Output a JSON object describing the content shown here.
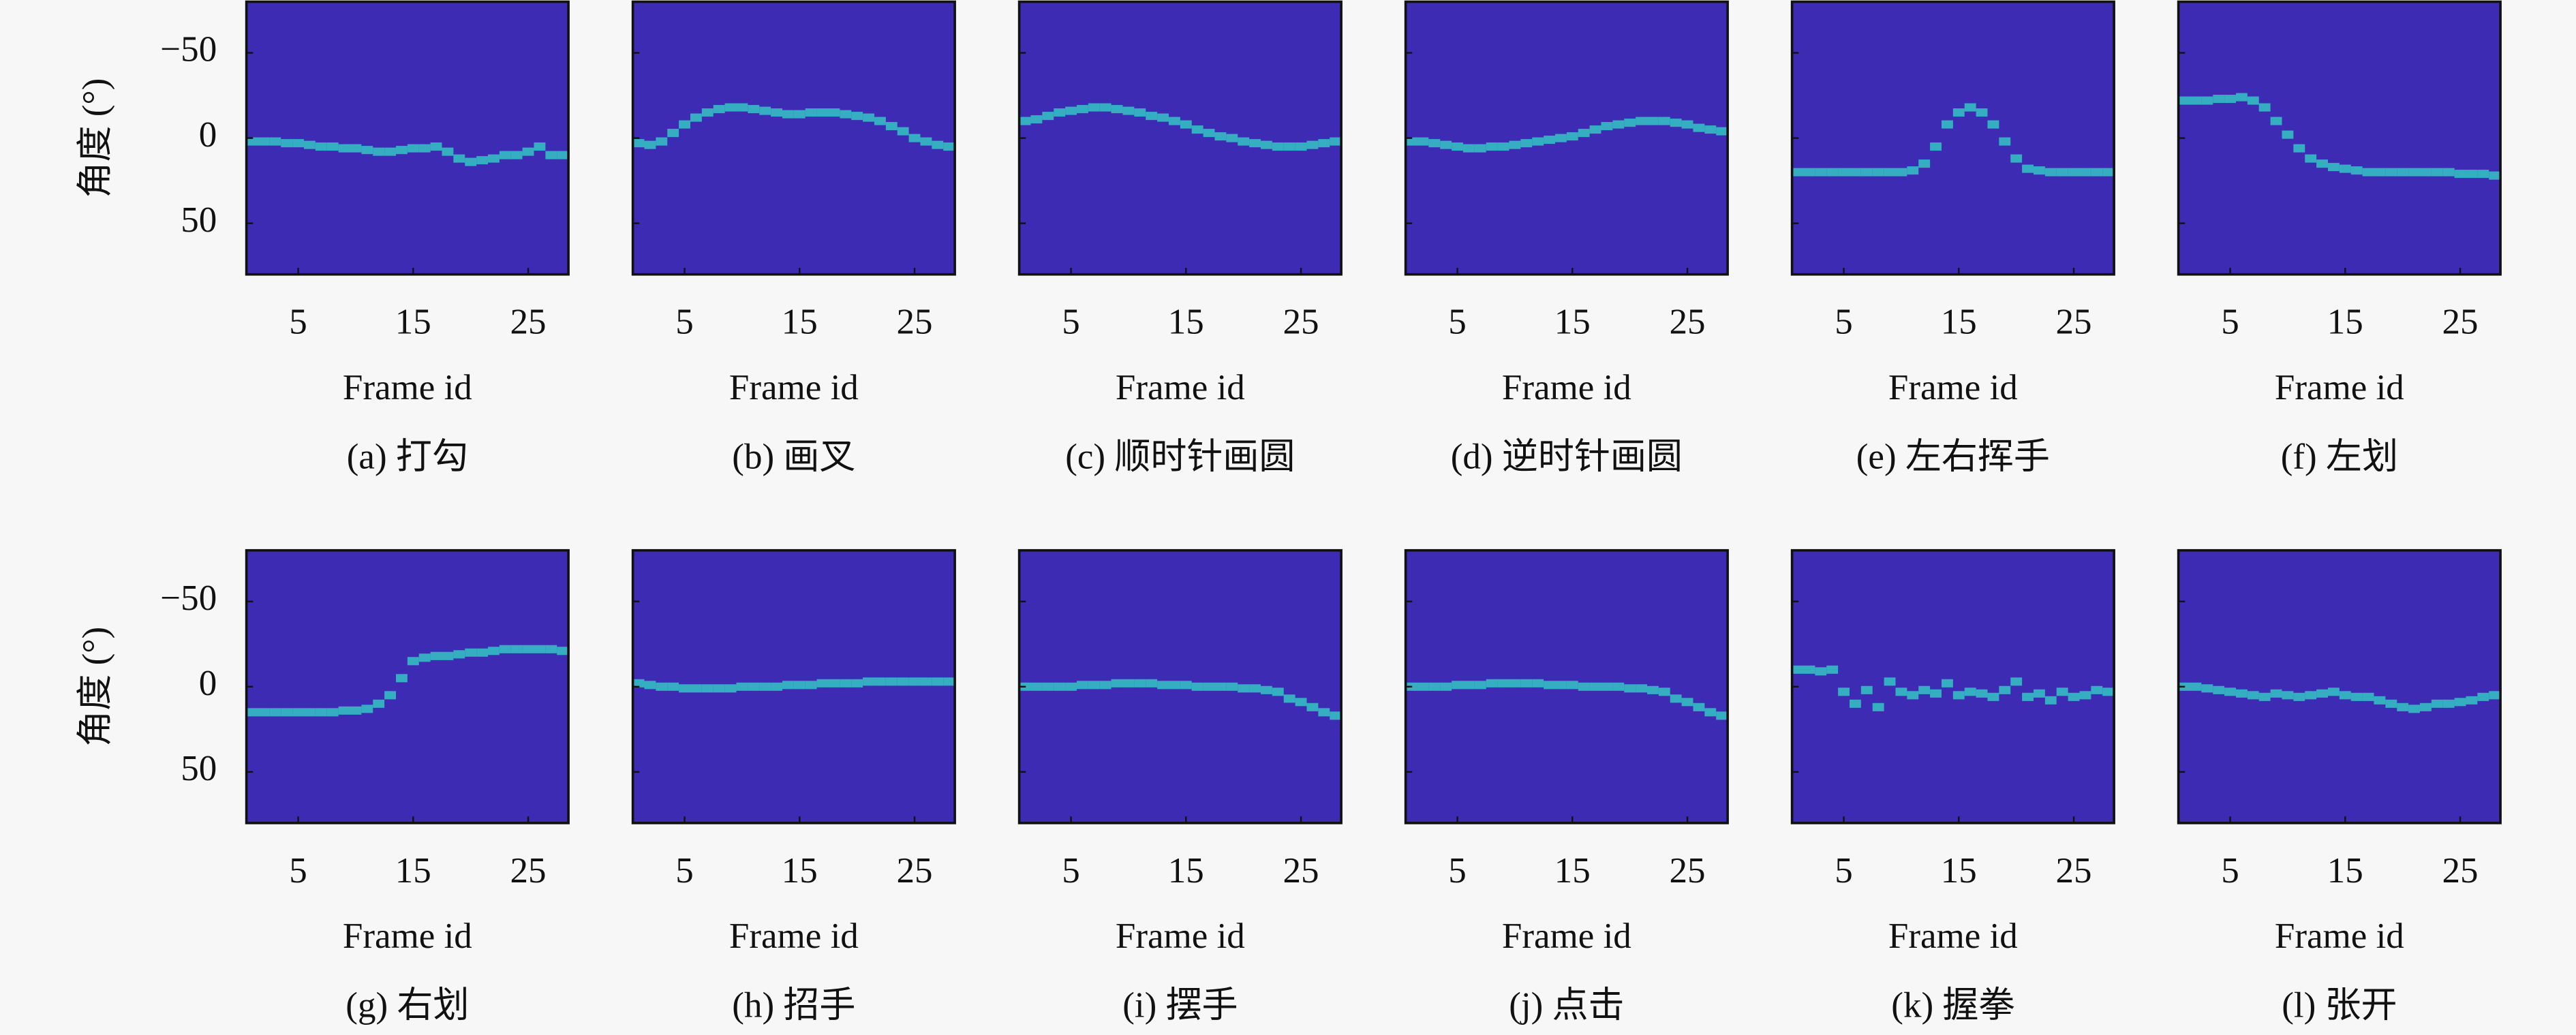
{
  "chart_data": [
    {
      "type": "heatmap",
      "caption": "(a) 打勾",
      "xlabel": "Frame id",
      "ylabel": "角度 (°)",
      "color": "#35c6c4",
      "background": "#3e2bb4",
      "x": [
        1,
        2,
        3,
        4,
        5,
        6,
        7,
        8,
        9,
        10,
        11,
        12,
        13,
        14,
        15,
        16,
        17,
        18,
        19,
        20,
        21,
        22,
        23,
        24,
        25,
        26,
        27,
        28
      ],
      "values": [
        2,
        2,
        2,
        3,
        3,
        4,
        5,
        5,
        6,
        6,
        7,
        8,
        8,
        7,
        6,
        6,
        5,
        8,
        12,
        14,
        13,
        12,
        10,
        10,
        8,
        5,
        10,
        10
      ],
      "xlim": [
        0.5,
        28.5
      ],
      "ylim": [
        80,
        -80
      ],
      "xticks": [
        5,
        15,
        25
      ],
      "yticks": [
        {
          "value": -50,
          "label": "−50"
        },
        0,
        50
      ]
    },
    {
      "type": "heatmap",
      "caption": "(b) 画叉",
      "xlabel": "Frame id",
      "color": "#35c6c4",
      "background": "#3e2bb4",
      "x": [
        1,
        2,
        3,
        4,
        5,
        6,
        7,
        8,
        9,
        10,
        11,
        12,
        13,
        14,
        15,
        16,
        17,
        18,
        19,
        20,
        21,
        22,
        23,
        24,
        25,
        26,
        27,
        28
      ],
      "values": [
        3,
        4,
        2,
        -3,
        -8,
        -12,
        -15,
        -17,
        -18,
        -18,
        -17,
        -16,
        -15,
        -14,
        -14,
        -15,
        -15,
        -15,
        -14,
        -13,
        -12,
        -10,
        -7,
        -4,
        0,
        2,
        4,
        5
      ],
      "xlim": [
        0.5,
        28.5
      ],
      "ylim": [
        80,
        -80
      ],
      "xticks": [
        5,
        15,
        25
      ],
      "yticks": [
        {
          "value": -50,
          "label": "−50"
        },
        0,
        50
      ]
    },
    {
      "type": "heatmap",
      "caption": "(c) 顺时针画圆",
      "xlabel": "Frame id",
      "color": "#35c6c4",
      "background": "#3e2bb4",
      "x": [
        1,
        2,
        3,
        4,
        5,
        6,
        7,
        8,
        9,
        10,
        11,
        12,
        13,
        14,
        15,
        16,
        17,
        18,
        19,
        20,
        21,
        22,
        23,
        24,
        25,
        26,
        27,
        28
      ],
      "values": [
        -10,
        -11,
        -13,
        -15,
        -16,
        -17,
        -18,
        -18,
        -17,
        -16,
        -15,
        -13,
        -12,
        -10,
        -8,
        -5,
        -3,
        -1,
        0,
        2,
        3,
        4,
        5,
        5,
        5,
        4,
        3,
        2
      ],
      "xlim": [
        0.5,
        28.5
      ],
      "ylim": [
        80,
        -80
      ],
      "xticks": [
        5,
        15,
        25
      ],
      "yticks": [
        {
          "value": -50,
          "label": "−50"
        },
        0,
        50
      ]
    },
    {
      "type": "heatmap",
      "caption": "(d) 逆时针画圆",
      "xlabel": "Frame id",
      "color": "#35c6c4",
      "background": "#3e2bb4",
      "x": [
        1,
        2,
        3,
        4,
        5,
        6,
        7,
        8,
        9,
        10,
        11,
        12,
        13,
        14,
        15,
        16,
        17,
        18,
        19,
        20,
        21,
        22,
        23,
        24,
        25,
        26,
        27,
        28
      ],
      "values": [
        2,
        2,
        3,
        4,
        5,
        6,
        6,
        5,
        5,
        4,
        3,
        2,
        1,
        0,
        -1,
        -3,
        -5,
        -7,
        -8,
        -9,
        -10,
        -10,
        -10,
        -9,
        -8,
        -6,
        -5,
        -4
      ],
      "xlim": [
        0.5,
        28.5
      ],
      "ylim": [
        80,
        -80
      ],
      "xticks": [
        5,
        15,
        25
      ],
      "yticks": [
        {
          "value": -50,
          "label": "−50"
        },
        0,
        50
      ]
    },
    {
      "type": "heatmap",
      "caption": "(e) 左右挥手",
      "xlabel": "Frame id",
      "color": "#35c6c4",
      "background": "#3e2bb4",
      "x": [
        1,
        2,
        3,
        4,
        5,
        6,
        7,
        8,
        9,
        10,
        11,
        12,
        13,
        14,
        15,
        16,
        17,
        18,
        19,
        20,
        21,
        22,
        23,
        24,
        25,
        26,
        27,
        28
      ],
      "values": [
        20,
        20,
        20,
        20,
        20,
        20,
        20,
        20,
        20,
        20,
        19,
        15,
        5,
        -8,
        -15,
        -18,
        -15,
        -8,
        2,
        12,
        18,
        19,
        20,
        20,
        20,
        20,
        20,
        20
      ],
      "xlim": [
        0.5,
        28.5
      ],
      "ylim": [
        80,
        -80
      ],
      "xticks": [
        5,
        15,
        25
      ],
      "yticks": [
        {
          "value": -50,
          "label": "−50"
        },
        0,
        50
      ]
    },
    {
      "type": "heatmap",
      "caption": "(f) 左划",
      "xlabel": "Frame id",
      "color": "#35c6c4",
      "background": "#3e2bb4",
      "x": [
        1,
        2,
        3,
        4,
        5,
        6,
        7,
        8,
        9,
        10,
        11,
        12,
        13,
        14,
        15,
        16,
        17,
        18,
        19,
        20,
        21,
        22,
        23,
        24,
        25,
        26,
        27,
        28
      ],
      "values": [
        -22,
        -22,
        -22,
        -23,
        -23,
        -24,
        -22,
        -18,
        -10,
        -2,
        6,
        12,
        15,
        17,
        18,
        19,
        20,
        20,
        20,
        20,
        20,
        20,
        20,
        20,
        21,
        21,
        21,
        22
      ],
      "xlim": [
        0.5,
        28.5
      ],
      "ylim": [
        80,
        -80
      ],
      "xticks": [
        5,
        15,
        25
      ],
      "yticks": [
        {
          "value": -50,
          "label": "−50"
        },
        0,
        50
      ]
    },
    {
      "type": "heatmap",
      "caption": "(g) 右划",
      "xlabel": "Frame id",
      "ylabel": "角度 (°)",
      "color": "#35c6c4",
      "background": "#3e2bb4",
      "x": [
        1,
        2,
        3,
        4,
        5,
        6,
        7,
        8,
        9,
        10,
        11,
        12,
        13,
        14,
        15,
        16,
        17,
        18,
        19,
        20,
        21,
        22,
        23,
        24,
        25,
        26,
        27,
        28
      ],
      "values": [
        15,
        15,
        15,
        15,
        15,
        15,
        15,
        15,
        14,
        14,
        13,
        10,
        5,
        -5,
        -15,
        -17,
        -18,
        -18,
        -19,
        -20,
        -20,
        -21,
        -22,
        -22,
        -22,
        -22,
        -22,
        -21
      ],
      "xlim": [
        0.5,
        28.5
      ],
      "ylim": [
        80,
        -80
      ],
      "xticks": [
        5,
        15,
        25
      ],
      "yticks": [
        {
          "value": -50,
          "label": "−50"
        },
        0,
        50
      ]
    },
    {
      "type": "heatmap",
      "caption": "(h) 招手",
      "xlabel": "Frame id",
      "color": "#35c6c4",
      "background": "#3e2bb4",
      "x": [
        1,
        2,
        3,
        4,
        5,
        6,
        7,
        8,
        9,
        10,
        11,
        12,
        13,
        14,
        15,
        16,
        17,
        18,
        19,
        20,
        21,
        22,
        23,
        24,
        25,
        26,
        27,
        28
      ],
      "values": [
        -2,
        -1,
        0,
        0,
        1,
        1,
        1,
        1,
        1,
        0,
        0,
        0,
        0,
        -1,
        -1,
        -1,
        -2,
        -2,
        -2,
        -2,
        -3,
        -3,
        -3,
        -3,
        -3,
        -3,
        -3,
        -3
      ],
      "xlim": [
        0.5,
        28.5
      ],
      "ylim": [
        80,
        -80
      ],
      "xticks": [
        5,
        15,
        25
      ],
      "yticks": [
        {
          "value": -50,
          "label": "−50"
        },
        0,
        50
      ]
    },
    {
      "type": "heatmap",
      "caption": "(i) 摆手",
      "xlabel": "Frame id",
      "color": "#35c6c4",
      "background": "#3e2bb4",
      "x": [
        1,
        2,
        3,
        4,
        5,
        6,
        7,
        8,
        9,
        10,
        11,
        12,
        13,
        14,
        15,
        16,
        17,
        18,
        19,
        20,
        21,
        22,
        23,
        24,
        25,
        26,
        27,
        28
      ],
      "values": [
        0,
        0,
        0,
        0,
        0,
        -1,
        -1,
        -1,
        -2,
        -2,
        -2,
        -2,
        -1,
        -1,
        -1,
        0,
        0,
        0,
        0,
        1,
        1,
        2,
        3,
        7,
        9,
        12,
        15,
        17
      ],
      "xlim": [
        0.5,
        28.5
      ],
      "ylim": [
        80,
        -80
      ],
      "xticks": [
        5,
        15,
        25
      ],
      "yticks": [
        {
          "value": -50,
          "label": "−50"
        },
        0,
        50
      ]
    },
    {
      "type": "heatmap",
      "caption": "(j) 点击",
      "xlabel": "Frame id",
      "color": "#35c6c4",
      "background": "#3e2bb4",
      "x": [
        1,
        2,
        3,
        4,
        5,
        6,
        7,
        8,
        9,
        10,
        11,
        12,
        13,
        14,
        15,
        16,
        17,
        18,
        19,
        20,
        21,
        22,
        23,
        24,
        25,
        26,
        27,
        28
      ],
      "values": [
        0,
        0,
        0,
        0,
        -1,
        -1,
        -1,
        -2,
        -2,
        -2,
        -2,
        -2,
        -1,
        -1,
        -1,
        0,
        0,
        0,
        0,
        1,
        1,
        2,
        3,
        7,
        9,
        12,
        15,
        17
      ],
      "xlim": [
        0.5,
        28.5
      ],
      "ylim": [
        80,
        -80
      ],
      "xticks": [
        5,
        15,
        25
      ],
      "yticks": [
        {
          "value": -50,
          "label": "−50"
        },
        0,
        50
      ]
    },
    {
      "type": "heatmap",
      "caption": "(k) 握拳",
      "xlabel": "Frame id",
      "color": "#35c6c4",
      "background": "#3e2bb4",
      "x": [
        1,
        2,
        3,
        4,
        5,
        6,
        7,
        8,
        9,
        10,
        11,
        12,
        13,
        14,
        15,
        16,
        17,
        18,
        19,
        20,
        21,
        22,
        23,
        24,
        25,
        26,
        27,
        28
      ],
      "values": [
        -10,
        -10,
        -9,
        -10,
        3,
        10,
        2,
        12,
        -3,
        3,
        5,
        2,
        4,
        -2,
        5,
        3,
        4,
        6,
        2,
        -3,
        6,
        4,
        8,
        3,
        6,
        5,
        2,
        3
      ],
      "xlim": [
        0.5,
        28.5
      ],
      "ylim": [
        80,
        -80
      ],
      "xticks": [
        5,
        15,
        25
      ],
      "yticks": [
        {
          "value": -50,
          "label": "−50"
        },
        0,
        50
      ]
    },
    {
      "type": "heatmap",
      "caption": "(l) 张开",
      "xlabel": "Frame id",
      "color": "#35c6c4",
      "background": "#3e2bb4",
      "x": [
        1,
        2,
        3,
        4,
        5,
        6,
        7,
        8,
        9,
        10,
        11,
        12,
        13,
        14,
        15,
        16,
        17,
        18,
        19,
        20,
        21,
        22,
        23,
        24,
        25,
        26,
        27,
        28
      ],
      "values": [
        0,
        0,
        1,
        2,
        3,
        4,
        5,
        6,
        4,
        5,
        6,
        5,
        4,
        3,
        5,
        6,
        6,
        8,
        10,
        12,
        13,
        12,
        10,
        10,
        9,
        8,
        6,
        5
      ],
      "xlim": [
        0.5,
        28.5
      ],
      "ylim": [
        80,
        -80
      ],
      "xticks": [
        5,
        15,
        25
      ],
      "yticks": [
        {
          "value": -50,
          "label": "−50"
        },
        0,
        50
      ]
    }
  ]
}
